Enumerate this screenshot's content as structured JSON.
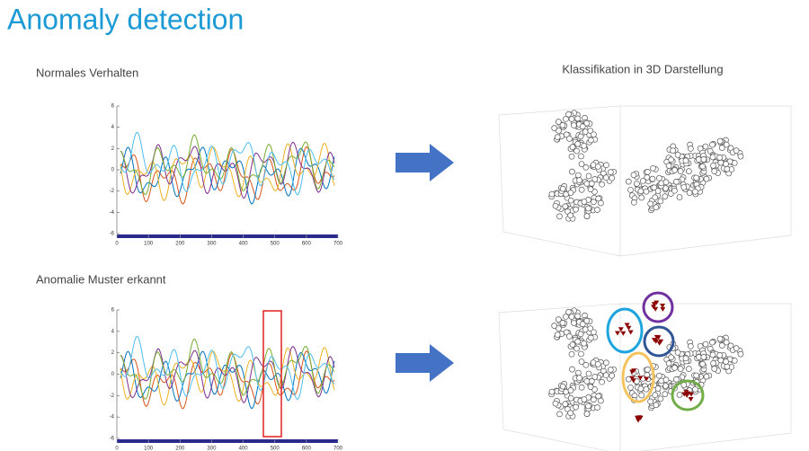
{
  "header": {
    "title": "Anomaly detection"
  },
  "right_title": "Klassifikation in 3D Darstellung",
  "panels": [
    {
      "label": "Normales Verhalten",
      "plot": {
        "yticks": [
          6,
          4,
          2,
          0,
          -2,
          -4,
          -6
        ],
        "xticks": [
          0,
          100,
          200,
          300,
          400,
          500,
          600,
          700
        ]
      }
    },
    {
      "label": "Anomalie Muster erkannt",
      "plot": {
        "yticks": [
          6,
          4,
          2,
          0,
          -2,
          -4,
          -6
        ],
        "xticks": [
          0,
          100,
          200,
          300,
          400,
          500,
          600,
          700
        ]
      }
    }
  ]
}
